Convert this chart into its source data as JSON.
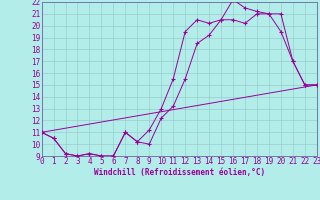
{
  "xlabel": "Windchill (Refroidissement éolien,°C)",
  "bg_color": "#b3ede9",
  "line_color": "#990099",
  "grid_color": "#99cccc",
  "axis_color": "#7777aa",
  "xmin": 0,
  "xmax": 23,
  "ymin": 9,
  "ymax": 22,
  "line1_x": [
    0,
    1,
    2,
    3,
    4,
    5,
    6,
    7,
    8,
    9,
    10,
    11,
    12,
    13,
    14,
    15,
    16,
    17,
    18,
    19,
    20,
    21,
    22,
    23
  ],
  "line1_y": [
    11,
    10.5,
    9.2,
    9.0,
    9.2,
    9.0,
    9.0,
    11.0,
    10.2,
    10.0,
    12.2,
    13.2,
    15.5,
    18.5,
    19.2,
    20.5,
    20.5,
    20.2,
    21.0,
    21.0,
    21.0,
    17.0,
    15.0,
    15.0
  ],
  "line2_x": [
    0,
    1,
    2,
    3,
    4,
    5,
    6,
    7,
    8,
    9,
    10,
    11,
    12,
    13,
    14,
    15,
    16,
    17,
    18,
    19,
    20,
    21,
    22,
    23
  ],
  "line2_y": [
    11,
    10.5,
    9.2,
    9.0,
    9.2,
    9.0,
    9.0,
    11.0,
    10.2,
    11.2,
    13.0,
    15.5,
    19.5,
    20.5,
    20.2,
    20.5,
    22.2,
    21.5,
    21.2,
    21.0,
    19.5,
    17.0,
    15.0,
    15.0
  ],
  "line3_x": [
    0,
    23
  ],
  "line3_y": [
    11,
    15
  ],
  "yticks": [
    9,
    10,
    11,
    12,
    13,
    14,
    15,
    16,
    17,
    18,
    19,
    20,
    21,
    22
  ],
  "xticks": [
    0,
    1,
    2,
    3,
    4,
    5,
    6,
    7,
    8,
    9,
    10,
    11,
    12,
    13,
    14,
    15,
    16,
    17,
    18,
    19,
    20,
    21,
    22,
    23
  ],
  "tick_fontsize": 5.5,
  "xlabel_fontsize": 5.5
}
